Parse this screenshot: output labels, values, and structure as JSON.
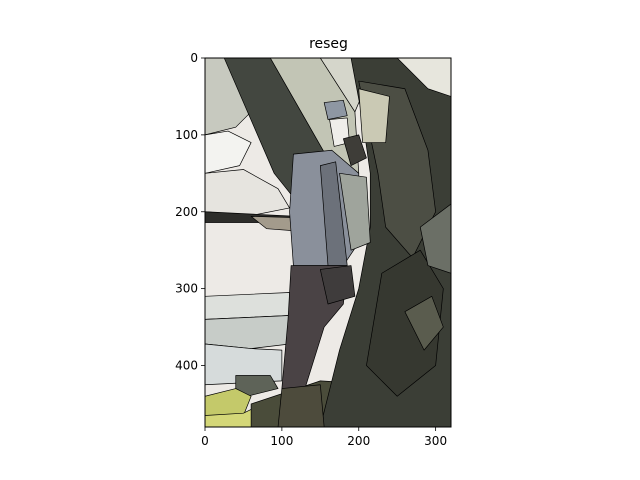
{
  "chart_data": {
    "type": "image",
    "title": "reseg",
    "xlabel": "",
    "ylabel": "",
    "xlim": [
      0,
      320
    ],
    "ylim": [
      480,
      0
    ],
    "x_ticks": [
      0,
      100,
      200,
      300
    ],
    "y_ticks": [
      0,
      100,
      200,
      300,
      400
    ],
    "grid": false
  }
}
